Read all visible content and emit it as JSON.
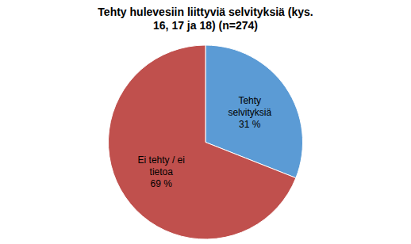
{
  "chart_data": {
    "type": "pie",
    "title": "Tehty hulevesiin liittyviä selvityksiä (kys.\n16, 17 ja 18) (n=274)",
    "categories": [
      "Tehty\nselvityksiä",
      "Ei tehty / ei\ntietoa"
    ],
    "values": [
      31,
      69
    ],
    "value_labels": [
      "31 %",
      "69 %"
    ],
    "colors": [
      "#5B9BD5",
      "#C0504D"
    ],
    "data_labels": true
  }
}
